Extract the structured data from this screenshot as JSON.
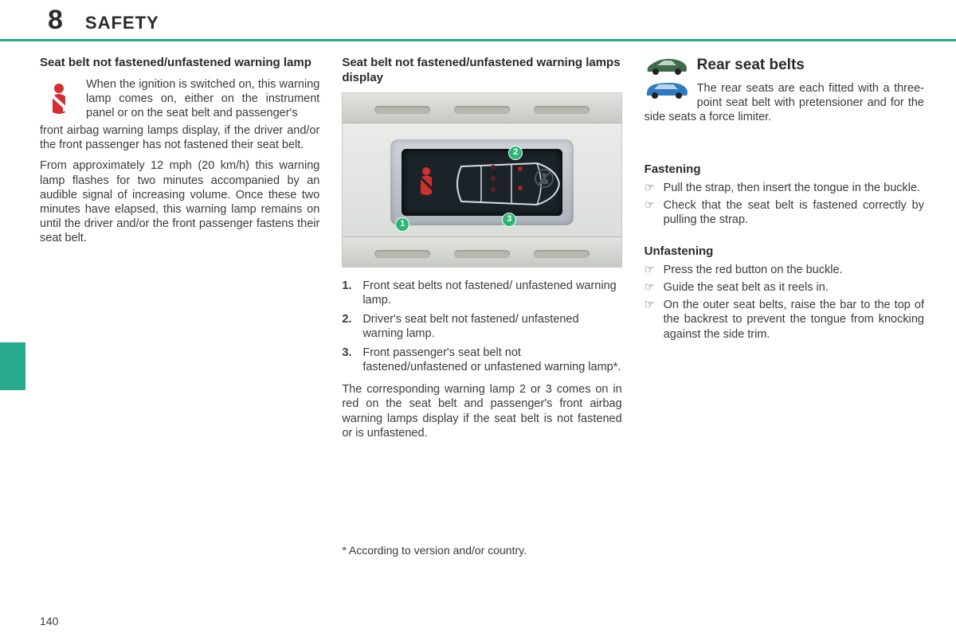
{
  "chapter": {
    "number": "8",
    "title": "SAFETY"
  },
  "accent_color": "#27a98b",
  "page_number": "140",
  "col1": {
    "heading": "Seat belt not fastened/unfastened warning lamp",
    "p1": "When the ignition is switched on, this warning lamp comes on, either on the instrument panel or on the seat belt and passenger's front airbag warning lamps display, if the driver and/or the front passenger has not fastened their seat belt.",
    "p2": "From approximately 12 mph (20 km/h) this warning lamp flashes for two minutes accompanied by an audible signal of increasing volume. Once these two minutes have elapsed, this warning lamp remains on until the driver and/or the front passenger fastens their seat belt."
  },
  "col2": {
    "heading": "Seat belt not fastened/unfastened warning lamps display",
    "items": [
      {
        "n": "1.",
        "t": "Front seat belts not fastened/ unfastened warning lamp."
      },
      {
        "n": "2.",
        "t": "Driver's seat belt not fastened/ unfastened warning lamp."
      },
      {
        "n": "3.",
        "t": "Front passenger's seat belt not fastened/unfastened or unfastened warning lamp*."
      }
    ],
    "p_after": "The corresponding warning lamp 2 or 3 comes on in red on the seat belt and passenger's front airbag warning lamps display if the seat belt is not fastened or is unfastened.",
    "footnote": "* According to version and/or country.",
    "figure": {
      "markers": {
        "1": "1",
        "2": "2",
        "3": "3"
      },
      "colors": {
        "panel_bg_top": "#cfd4d9",
        "screen_bg": "#1a2328",
        "dot_red": "#b32020",
        "car_line": "#d8dde2",
        "seatbelt_red": "#d22f2f",
        "marker_green": "#2bb673"
      }
    }
  },
  "col3": {
    "heading": "Rear seat belts",
    "intro": "The rear seats are each fitted with a three-point seat belt with pretensioner and for the side seats a force limiter.",
    "car_colors": {
      "top": "#3e6b4a",
      "bottom": "#2f7bbf"
    },
    "fastening_h": "Fastening",
    "fastening": [
      "Pull the strap, then insert the tongue in the buckle.",
      "Check that the seat belt is fastened correctly by pulling the strap."
    ],
    "unfastening_h": "Unfastening",
    "unfastening": [
      "Press the red button on the buckle.",
      "Guide the seat belt as it reels in.",
      "On the outer seat belts, raise the bar to the top of the backrest to prevent the tongue from knocking against the side trim."
    ],
    "bullet": "☞"
  }
}
